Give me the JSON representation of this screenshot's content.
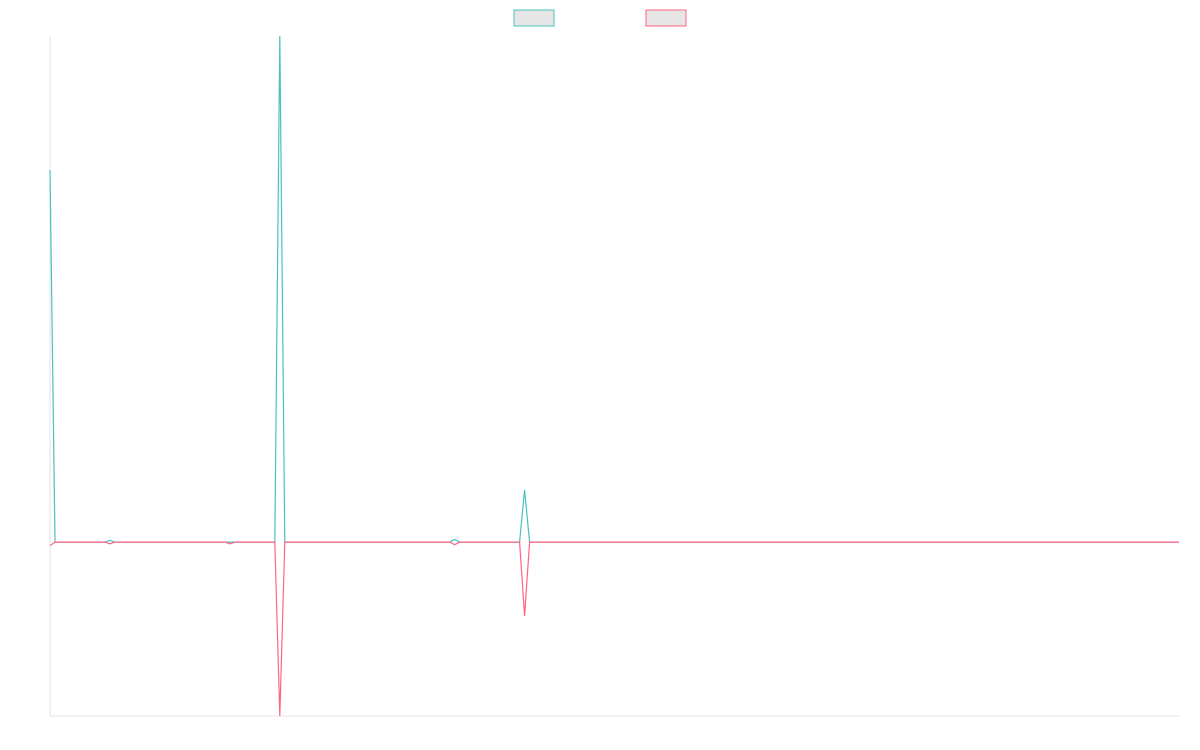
{
  "chart_data": {
    "type": "line",
    "series": [
      {
        "color": "#4bc0c0",
        "values": [
          214,
          0,
          0,
          0,
          0,
          0,
          0,
          0,
          0,
          0,
          0,
          0,
          1,
          0,
          0,
          0,
          0,
          0,
          0,
          0,
          0,
          0,
          0,
          0,
          0,
          0,
          0,
          0,
          0,
          0,
          0,
          0,
          0,
          0,
          0,
          0,
          0,
          0,
          0,
          0,
          0,
          0,
          0,
          0,
          0,
          0,
          291,
          0,
          0,
          0,
          0,
          0,
          0,
          0,
          0,
          0,
          0,
          0,
          0,
          0,
          0,
          0,
          0,
          0,
          0,
          0,
          0,
          0,
          0,
          0,
          0,
          0,
          0,
          0,
          0,
          0,
          0,
          0,
          0,
          0,
          0,
          1.5,
          0,
          0,
          0,
          0,
          0,
          0,
          0,
          0,
          0,
          0,
          0,
          0,
          0,
          30,
          0,
          0,
          0,
          0,
          0,
          0,
          0,
          0,
          0,
          0,
          0,
          0,
          0,
          0,
          0,
          0,
          0,
          0,
          0,
          0,
          0,
          0,
          0,
          0,
          0,
          0,
          0,
          0,
          0,
          0,
          0,
          0,
          0,
          0,
          0,
          0,
          0,
          0,
          0,
          0,
          0,
          0,
          0,
          0,
          0,
          0,
          0,
          0,
          0,
          0,
          0,
          0,
          0,
          0,
          0,
          0,
          0,
          0,
          0,
          0,
          0,
          0,
          0,
          0,
          0,
          0,
          0,
          0,
          0,
          0,
          0,
          0,
          0,
          0,
          0,
          0,
          0,
          0,
          0,
          0,
          0,
          0,
          0,
          0,
          0,
          0,
          0,
          0,
          0,
          0,
          0,
          0,
          0,
          0,
          0,
          0,
          0,
          0,
          0,
          0,
          0,
          0,
          0,
          0,
          0,
          0,
          0,
          0,
          0,
          0,
          0,
          0,
          0,
          0,
          0,
          0,
          0,
          0,
          0,
          0,
          0,
          0,
          0,
          0,
          0,
          0,
          0,
          0,
          0,
          0,
          0
        ]
      },
      {
        "color": "#ff6384",
        "values": [
          -2,
          0,
          0,
          0,
          0,
          0,
          0,
          0,
          0,
          0,
          0,
          0,
          -1,
          0,
          0,
          0,
          0,
          0,
          0,
          0,
          0,
          0,
          0,
          0,
          0,
          0,
          0,
          0,
          0,
          0,
          0,
          0,
          0,
          0,
          0,
          0,
          -1,
          0,
          0,
          0,
          0,
          0,
          0,
          0,
          0,
          0,
          -100,
          0,
          0,
          0,
          0,
          0,
          0,
          0,
          0,
          0,
          0,
          0,
          0,
          0,
          0,
          0,
          0,
          0,
          0,
          0,
          0,
          0,
          0,
          0,
          0,
          0,
          0,
          0,
          0,
          0,
          0,
          0,
          0,
          0,
          0,
          -1.5,
          0,
          0,
          0,
          0,
          0,
          0,
          0,
          0,
          0,
          0,
          0,
          0,
          0,
          -42.5,
          0,
          0,
          0,
          0,
          0,
          0,
          0,
          0,
          0,
          0,
          0,
          0,
          0,
          0,
          0,
          0,
          0,
          0,
          0,
          0,
          0,
          0,
          0,
          0,
          0,
          0,
          0,
          0,
          0,
          0,
          0,
          0,
          0,
          0,
          0,
          0,
          0,
          0,
          0,
          0,
          0,
          0,
          0,
          0,
          0,
          0,
          0,
          0,
          0,
          0,
          0,
          0,
          0,
          0,
          0,
          0,
          0,
          0,
          0,
          0,
          0,
          0,
          0,
          0,
          0,
          0,
          0,
          0,
          0,
          0,
          0,
          0,
          0,
          0,
          0,
          0,
          0,
          0,
          0,
          0,
          0,
          0,
          0,
          0,
          0,
          0,
          0,
          0,
          0,
          0,
          0,
          0,
          0,
          0,
          0,
          0,
          0,
          0,
          0,
          0,
          0,
          0,
          0,
          0,
          0,
          0,
          0,
          0,
          0,
          0,
          0,
          0,
          0,
          0,
          0,
          0,
          0,
          0,
          0,
          0,
          0,
          0,
          0,
          0,
          0,
          0,
          0,
          0,
          0,
          0,
          0
        ]
      }
    ],
    "ylim": [
      -100,
      291
    ]
  }
}
